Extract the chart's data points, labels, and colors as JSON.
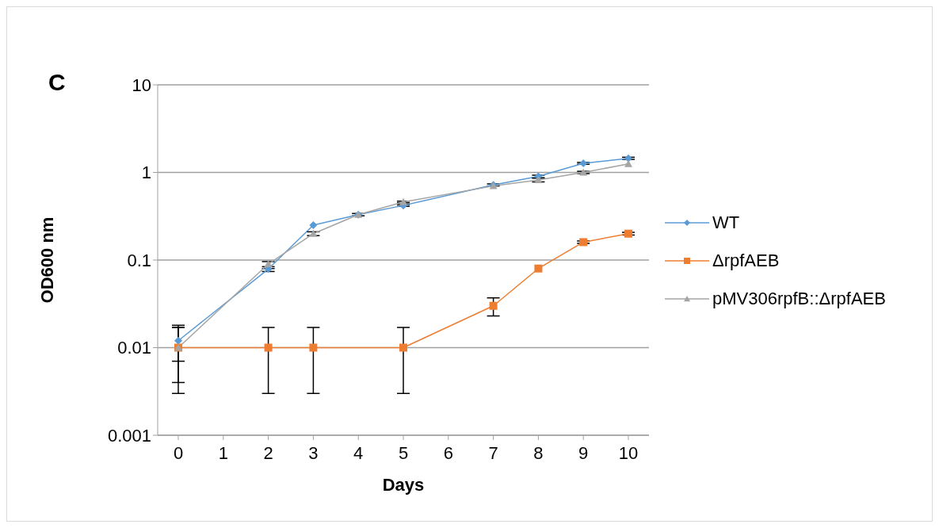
{
  "chart_data": {
    "type": "line",
    "title": "C",
    "xlabel": "Days",
    "ylabel": "OD600 nm",
    "categories": [
      "0",
      "1",
      "2",
      "3",
      "4",
      "5",
      "6",
      "7",
      "8",
      "9",
      "10"
    ],
    "log": "y",
    "ylim": [
      0.001,
      10
    ],
    "yticks": [
      0.001,
      0.01,
      0.1,
      1,
      10
    ],
    "grid": "y",
    "legend": "right",
    "series": [
      {
        "name": "WT",
        "color": "#5b9bd5",
        "marker": "diamond",
        "values": [
          0.012,
          null,
          0.079,
          0.25,
          0.33,
          0.42,
          null,
          0.72,
          0.9,
          1.27,
          1.45
        ],
        "errors": [
          [
            0.007,
            0.018
          ],
          null,
          [
            0.074,
            0.084
          ],
          null,
          [
            0.32,
            0.34
          ],
          [
            0.41,
            0.43
          ],
          null,
          [
            0.7,
            0.74
          ],
          [
            0.87,
            0.93
          ],
          [
            1.24,
            1.3
          ],
          [
            1.41,
            1.49
          ]
        ]
      },
      {
        "name": "ΔrpfAEB",
        "color": "#ed7d31",
        "marker": "square",
        "values": [
          0.01,
          null,
          0.01,
          0.01,
          null,
          0.01,
          null,
          0.03,
          0.08,
          0.16,
          0.2
        ],
        "errors": [
          [
            0.003,
            0.017
          ],
          null,
          [
            0.003,
            0.017
          ],
          [
            0.003,
            0.017
          ],
          null,
          [
            0.003,
            0.017
          ],
          null,
          [
            0.023,
            0.037
          ],
          null,
          [
            0.155,
            0.165
          ],
          [
            0.193,
            0.207
          ]
        ]
      },
      {
        "name": "pMV306rpfB::ΔrpfAEB",
        "color": "#a5a5a5",
        "marker": "triangle",
        "values": [
          0.01,
          null,
          0.09,
          0.2,
          0.33,
          0.46,
          null,
          0.7,
          0.82,
          1.0,
          1.25
        ],
        "errors": [
          [
            0.004,
            0.017
          ],
          null,
          [
            0.08,
            0.096
          ],
          [
            0.19,
            0.21
          ],
          null,
          [
            0.45,
            0.47
          ],
          null,
          null,
          [
            0.78,
            0.86
          ],
          [
            0.97,
            1.03
          ],
          null
        ]
      }
    ]
  }
}
